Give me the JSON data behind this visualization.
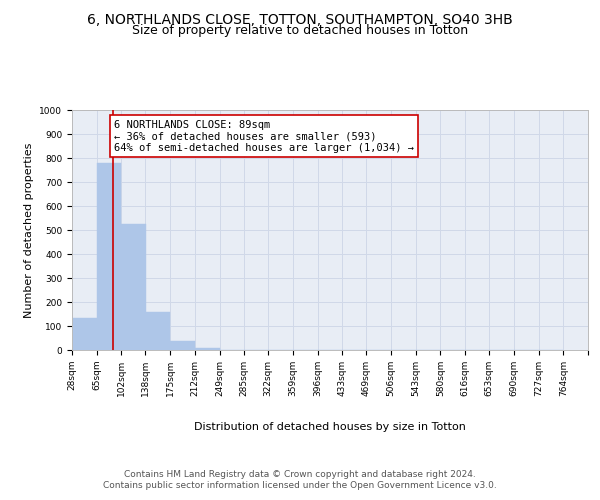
{
  "title_line1": "6, NORTHLANDS CLOSE, TOTTON, SOUTHAMPTON, SO40 3HB",
  "title_line2": "Size of property relative to detached houses in Totton",
  "xlabel": "Distribution of detached houses by size in Totton",
  "ylabel": "Number of detached properties",
  "bin_labels": [
    "28sqm",
    "65sqm",
    "102sqm",
    "138sqm",
    "175sqm",
    "212sqm",
    "249sqm",
    "285sqm",
    "322sqm",
    "359sqm",
    "396sqm",
    "433sqm",
    "469sqm",
    "506sqm",
    "543sqm",
    "580sqm",
    "616sqm",
    "653sqm",
    "690sqm",
    "727sqm",
    "764sqm"
  ],
  "bin_edges": [
    28,
    65,
    102,
    138,
    175,
    212,
    249,
    285,
    322,
    359,
    396,
    433,
    469,
    506,
    543,
    580,
    616,
    653,
    690,
    727,
    764
  ],
  "bar_heights": [
    135,
    780,
    525,
    160,
    37,
    10,
    0,
    0,
    0,
    0,
    0,
    0,
    0,
    0,
    0,
    0,
    0,
    0,
    0,
    0
  ],
  "bar_color": "#aec6e8",
  "bar_edgecolor": "#aec6e8",
  "property_line_x": 89,
  "property_line_color": "#cc0000",
  "annotation_text": "6 NORTHLANDS CLOSE: 89sqm\n← 36% of detached houses are smaller (593)\n64% of semi-detached houses are larger (1,034) →",
  "annotation_box_edgecolor": "#cc0000",
  "annotation_box_facecolor": "#ffffff",
  "ylim": [
    0,
    1000
  ],
  "yticks": [
    0,
    100,
    200,
    300,
    400,
    500,
    600,
    700,
    800,
    900,
    1000
  ],
  "grid_color": "#d0d8e8",
  "bg_color": "#e8edf5",
  "footer_line1": "Contains HM Land Registry data © Crown copyright and database right 2024.",
  "footer_line2": "Contains public sector information licensed under the Open Government Licence v3.0.",
  "title_fontsize": 10,
  "subtitle_fontsize": 9,
  "axis_label_fontsize": 8,
  "tick_fontsize": 6.5,
  "annotation_fontsize": 7.5,
  "footer_fontsize": 6.5
}
